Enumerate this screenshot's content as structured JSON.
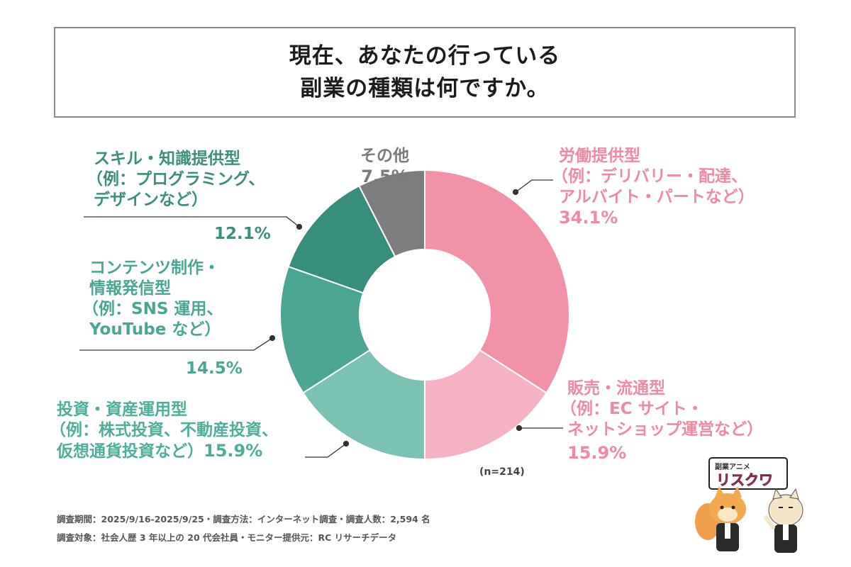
{
  "title": {
    "line1": "現在、あなたの行っている",
    "line2": "副業の種類は何ですか。"
  },
  "chart_data": {
    "type": "pie",
    "donut": true,
    "sample_size": "(n=214)",
    "slices": [
      {
        "label_lines": [
          "労働提供型",
          "（例：デリバリー・配達、",
          "アルバイト・パートなど）"
        ],
        "value": 34.1,
        "value_label": "34.1%",
        "color": "#f192a8"
      },
      {
        "label_lines": [
          "販売・流通型",
          "（例：EC サイト・",
          "ネットショップ運営など）"
        ],
        "value": 15.9,
        "value_label": "15.9%",
        "color": "#f6b1c3"
      },
      {
        "label_lines": [
          "投資・資産運用型",
          "（例：株式投資、不動産投資、",
          "仮想通貨投資など）"
        ],
        "value": 15.9,
        "value_label": "15.9%",
        "color": "#7bc2b5"
      },
      {
        "label_lines": [
          "コンテンツ制作・",
          "情報発信型",
          "（例：SNS 運用、",
          "YouTube など）"
        ],
        "value": 14.5,
        "value_label": "14.5%",
        "color": "#4da594"
      },
      {
        "label_lines": [
          "スキル・知識提供型",
          "（例：プログラミング、",
          "デザインなど）"
        ],
        "value": 12.1,
        "value_label": "12.1%",
        "color": "#378e7c"
      },
      {
        "label_lines": [
          "その他"
        ],
        "value": 7.5,
        "value_label": "7.5%",
        "color": "#7d7d7d"
      }
    ]
  },
  "footer": {
    "line1": "調査期間：2025/9/16-2025/9/25・調査方法：インターネット調査・調査人数：2,594 名",
    "line2": "調査対象：社会人歴 3 年以上の 20 代会社員・モニター提供元：RC リサーチデータ"
  },
  "logo": {
    "small": "副業アニメ",
    "main": "リスクワ"
  }
}
